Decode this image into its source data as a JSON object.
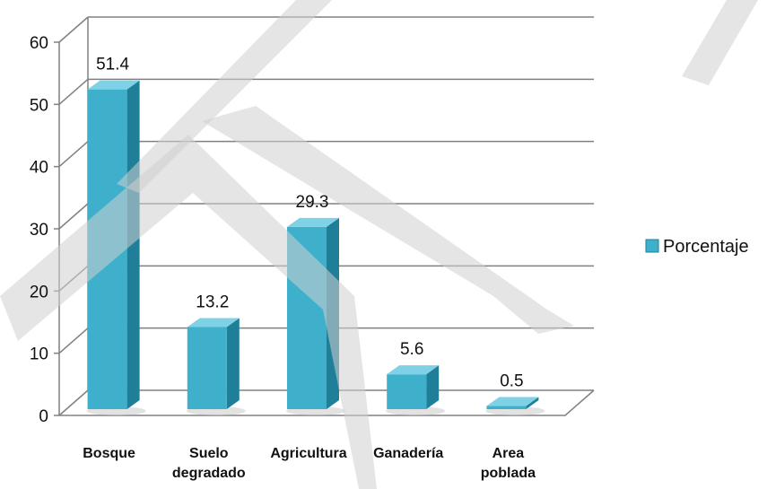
{
  "chart_data": {
    "type": "bar",
    "style": "3d-column",
    "categories": [
      [
        "Bosque"
      ],
      [
        "Suelo",
        "degradado"
      ],
      [
        "Agricultura"
      ],
      [
        "Ganadería"
      ],
      [
        "Area",
        "poblada"
      ]
    ],
    "series": [
      {
        "name": "Porcentaje",
        "values": [
          51.4,
          13.2,
          29.3,
          5.6,
          0.5
        ]
      }
    ],
    "data_labels": [
      "51.4",
      "13.2",
      "29.3",
      "5.6",
      "0.5"
    ],
    "ylim": [
      0,
      60
    ],
    "yticks": [
      0,
      10,
      20,
      30,
      40,
      50,
      60
    ],
    "grid": true,
    "legend": "right",
    "colors": {
      "bar_front": "#3fb0cc",
      "bar_side": "#1f7f99",
      "bar_top": "#7fd2e6",
      "grid": "#808080",
      "watermark": "#d0d0d0"
    }
  }
}
